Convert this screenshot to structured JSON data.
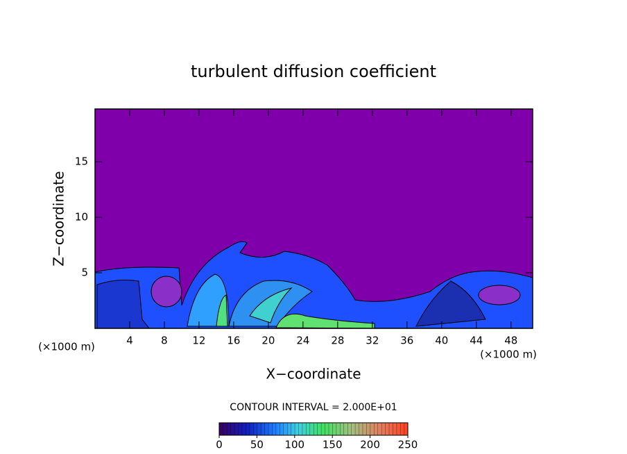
{
  "chart_data": {
    "type": "contour",
    "title": "turbulent diffusion coefficient",
    "x_label": "X−coordinate",
    "y_label": "Z−coordinate",
    "x_unit_label": "(×1000 m)",
    "y_unit_label": "(×1000 m)",
    "xlim": [
      0,
      50.5
    ],
    "ylim": [
      0,
      19.75
    ],
    "xticks": [
      4,
      8,
      12,
      16,
      20,
      24,
      28,
      32,
      36,
      40,
      44,
      48
    ],
    "yticks": [
      5,
      10,
      15
    ],
    "contour_label": "CONTOUR INTERVAL = 2.000E+01",
    "colorbar": {
      "lim": [
        0,
        250
      ],
      "ticks": [
        0,
        50,
        100,
        150,
        200,
        250
      ]
    }
  }
}
